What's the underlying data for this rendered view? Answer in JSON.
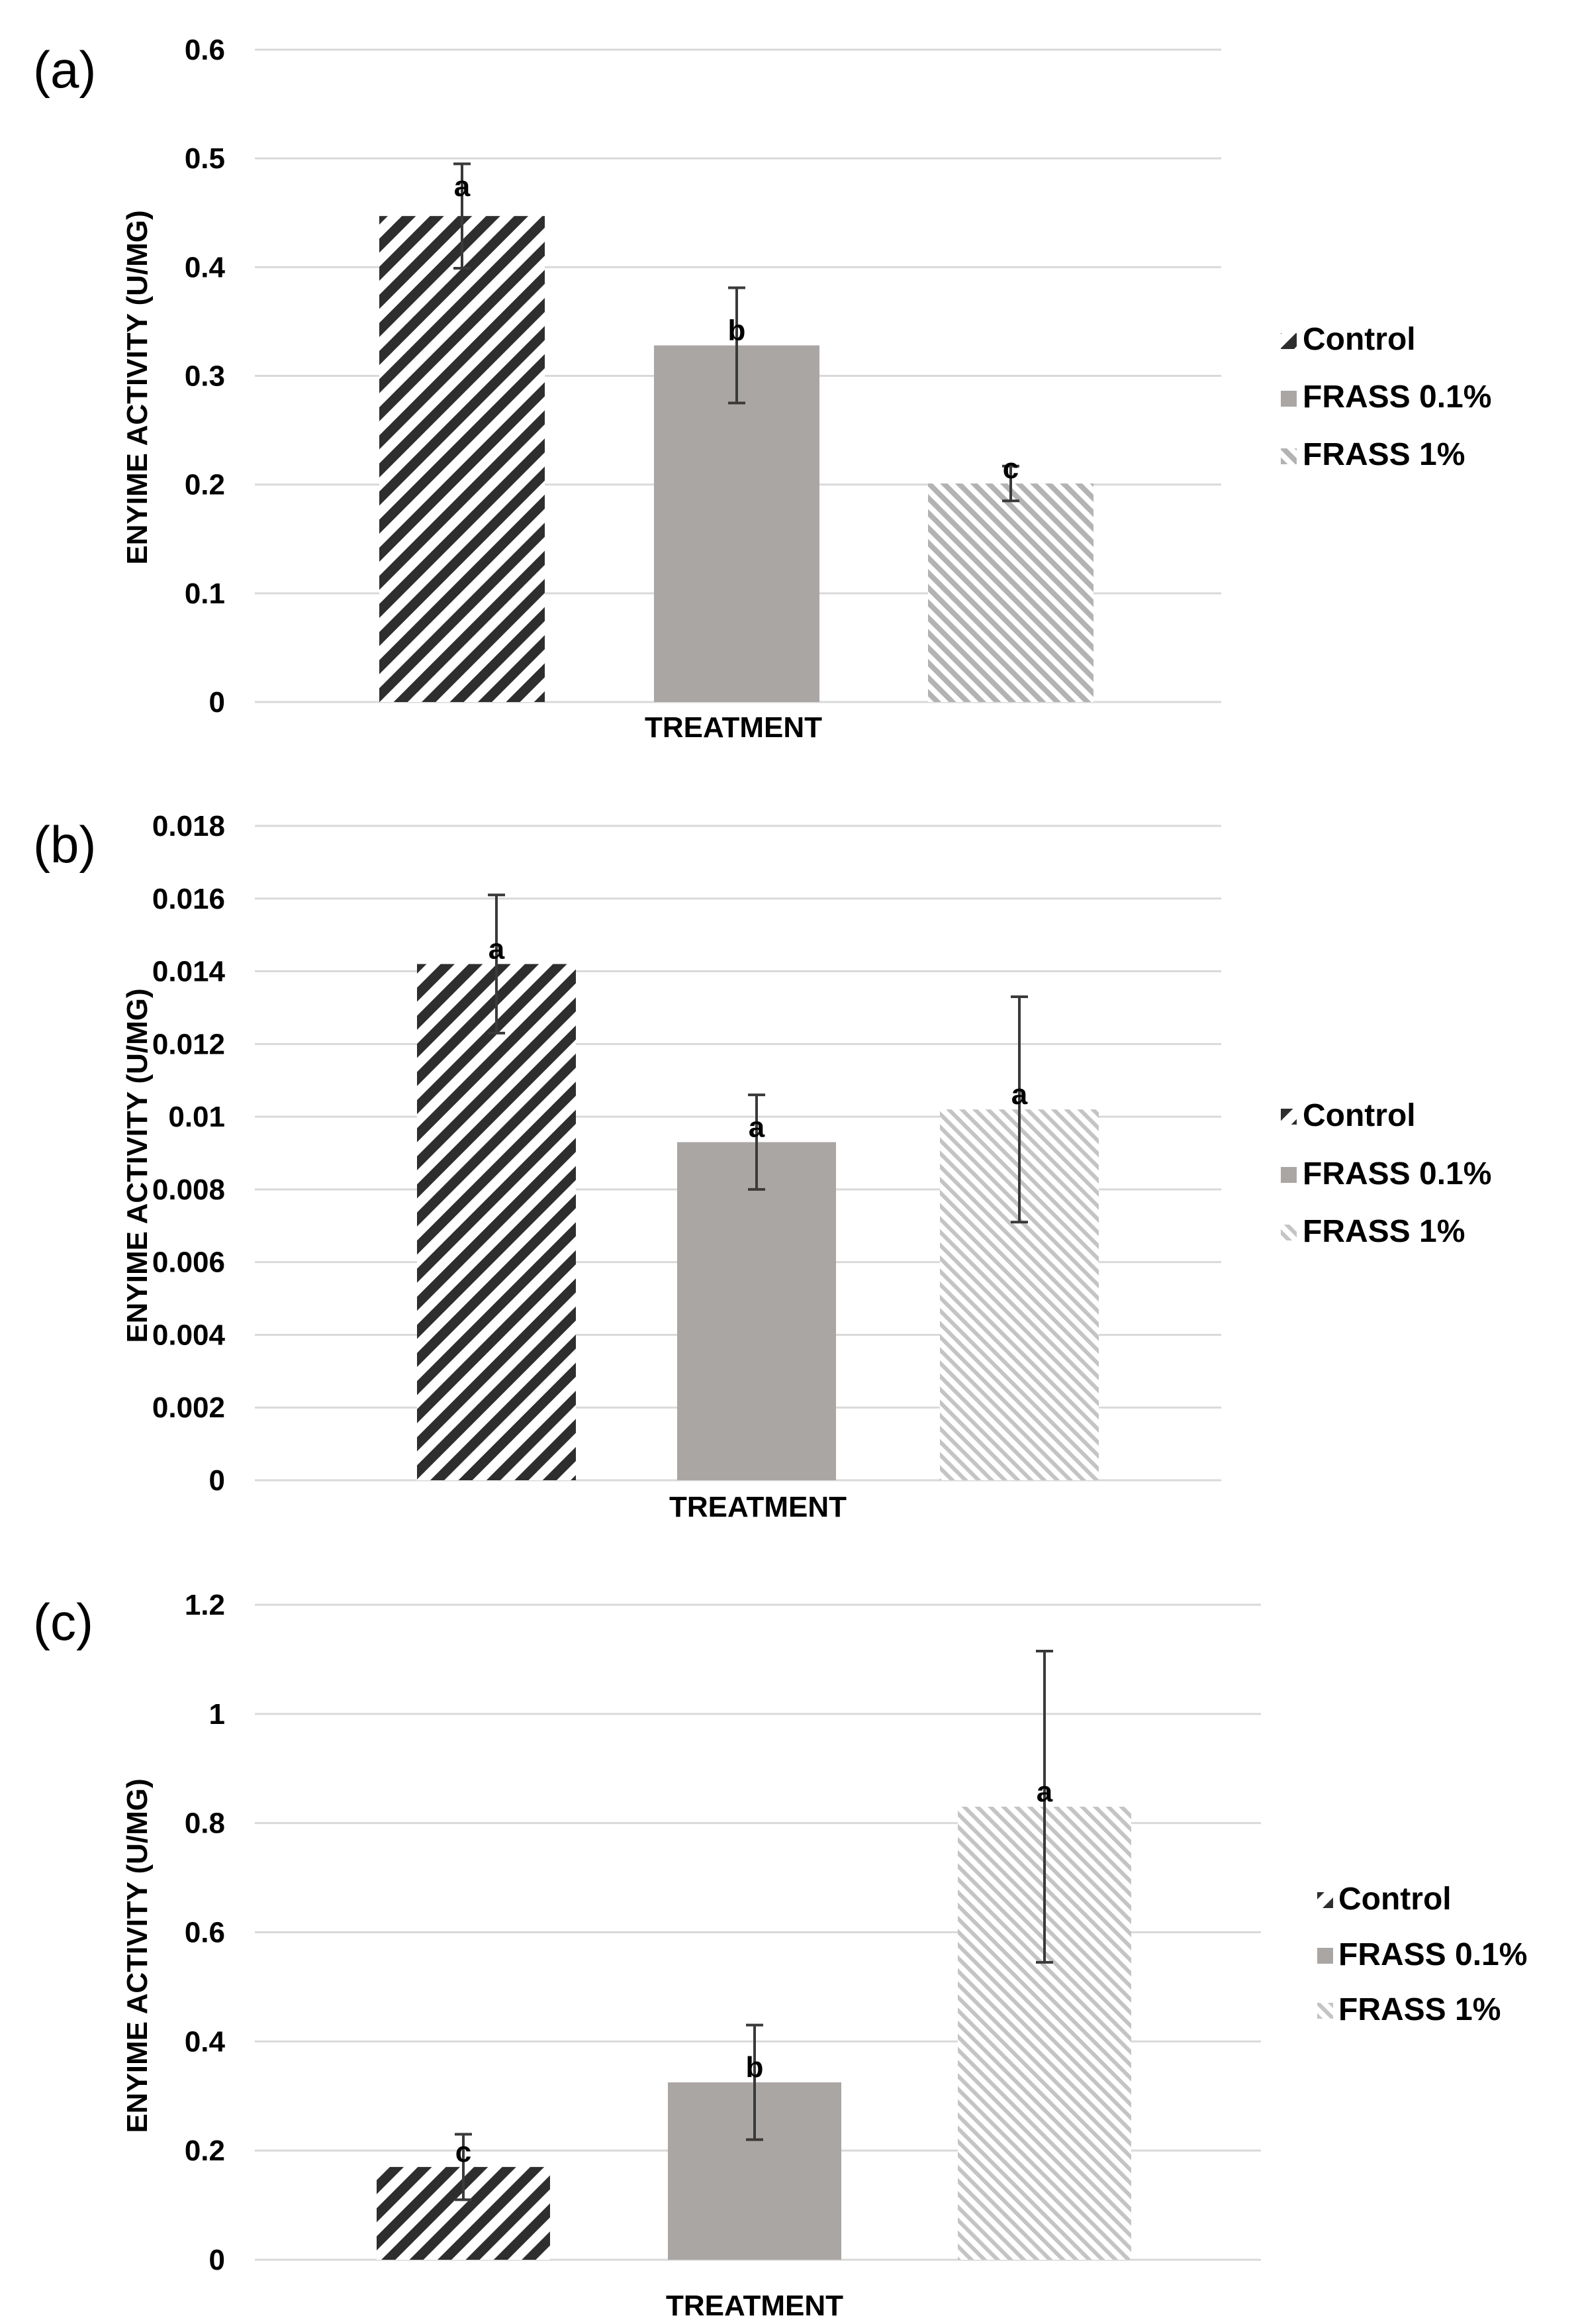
{
  "colors": {
    "control": "#2e2e2e",
    "frass_01": "#aaa6a4",
    "frass_1": "#b3b3b3",
    "grid": "#d9d9d9",
    "error_bar": "#3a3a3a"
  },
  "chart_data": [
    {
      "type": "bar",
      "panel_label": "(a)",
      "categories": [
        "Control",
        "FRASS 0.1%",
        "FRASS 1%"
      ],
      "values": [
        0.447,
        0.328,
        0.201
      ],
      "errors": [
        0.048,
        0.053,
        0.016
      ],
      "significance": [
        "a",
        "b",
        "c"
      ],
      "xlabel": "TREATMENT",
      "ylabel": "ENYIME ACTIVITY (U/MG)",
      "ylim": [
        0,
        0.6
      ],
      "yticks": [
        "0",
        "0.1",
        "0.2",
        "0.3",
        "0.4",
        "0.5",
        "0.6"
      ],
      "legend": [
        "Control",
        "FRASS 0.1%",
        "FRASS 1%"
      ],
      "legend_position": "right",
      "grid": true
    },
    {
      "type": "bar",
      "panel_label": "(b)",
      "categories": [
        "Control",
        "FRASS 0.1%",
        "FRASS 1%"
      ],
      "values": [
        0.0142,
        0.0093,
        0.0102
      ],
      "errors": [
        0.0019,
        0.0013,
        0.0031
      ],
      "significance": [
        "a",
        "a",
        "a"
      ],
      "xlabel": "TREATMENT",
      "ylabel": "ENYIME ACTIVITY (U/MG)",
      "ylim": [
        0,
        0.018
      ],
      "yticks": [
        "0",
        "0.002",
        "0.004",
        "0.006",
        "0.008",
        "0.01",
        "0.012",
        "0.014",
        "0.016",
        "0.018"
      ],
      "legend": [
        "Control",
        "FRASS 0.1%",
        "FRASS 1%"
      ],
      "legend_position": "right",
      "grid": true
    },
    {
      "type": "bar",
      "panel_label": "(c)",
      "categories": [
        "Control",
        "FRASS 0.1%",
        "FRASS 1%"
      ],
      "values": [
        0.17,
        0.325,
        0.83
      ],
      "errors": [
        0.06,
        0.105,
        0.285
      ],
      "significance": [
        "c",
        "b",
        "a"
      ],
      "xlabel": "TREATMENT",
      "ylabel": "ENYIME ACTIVITY (U/MG)",
      "ylim": [
        0,
        1.2
      ],
      "yticks": [
        "0",
        "0.2",
        "0.4",
        "0.6",
        "0.8",
        "1",
        "1.2"
      ],
      "legend": [
        "Control",
        "FRASS 0.1%",
        "FRASS 1%"
      ],
      "legend_position": "right",
      "grid": true
    }
  ]
}
